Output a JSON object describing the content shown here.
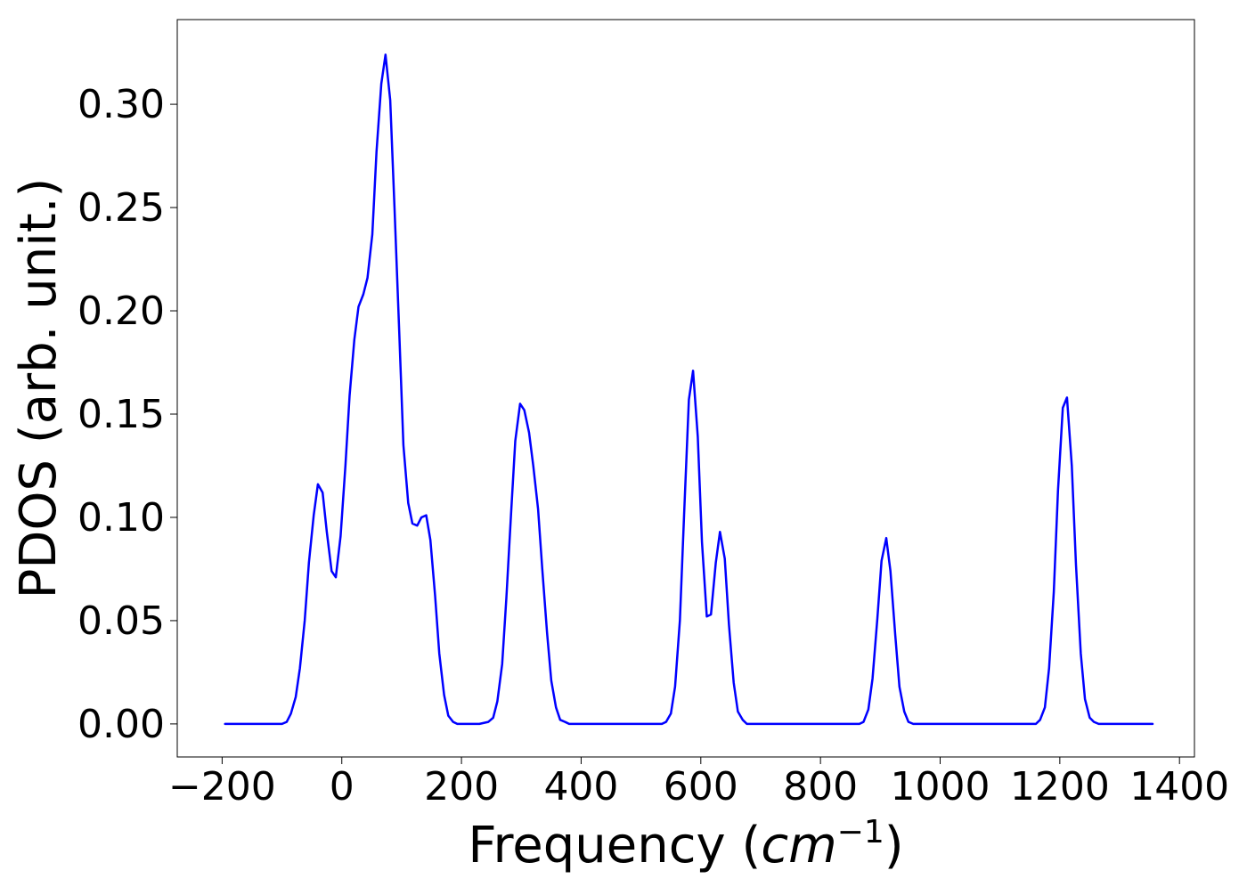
{
  "chart_data": {
    "type": "line",
    "xlabel": "Frequency (",
    "xlabel_math": "cm",
    "xlabel_sup": "−1",
    "xlabel_tail": ")",
    "ylabel": "PDOS (arb. unit.)",
    "xlim": [
      -275,
      1425
    ],
    "ylim": [
      -0.016,
      0.341
    ],
    "x_ticks": [
      -200,
      0,
      200,
      400,
      600,
      800,
      1000,
      1200,
      1400
    ],
    "x_tick_labels": [
      "−200",
      "0",
      "200",
      "400",
      "600",
      "800",
      "1000",
      "1200",
      "1400"
    ],
    "y_ticks": [
      0.0,
      0.05,
      0.1,
      0.15,
      0.2,
      0.25,
      0.3
    ],
    "y_tick_labels": [
      "0.00",
      "0.05",
      "0.10",
      "0.15",
      "0.20",
      "0.25",
      "0.30"
    ],
    "grid": false,
    "legend": "none",
    "series": [
      {
        "color": "#0000ff",
        "x": [
          -195,
          -100,
          -92,
          -85,
          -77,
          -70,
          -62,
          -55,
          -47,
          -40,
          -32,
          -25,
          -17,
          -10,
          -2,
          6,
          13,
          21,
          28,
          36,
          43,
          51,
          58,
          66,
          73,
          81,
          88,
          96,
          103,
          111,
          118,
          126,
          133,
          141,
          148,
          156,
          163,
          171,
          178,
          186,
          193,
          201,
          208,
          216,
          230,
          245,
          253,
          260,
          268,
          275,
          283,
          290,
          298,
          305,
          313,
          320,
          328,
          335,
          343,
          350,
          358,
          365,
          373,
          380,
          388,
          400,
          535,
          542,
          550,
          557,
          565,
          572,
          580,
          587,
          595,
          602,
          610,
          617,
          625,
          632,
          640,
          647,
          655,
          662,
          670,
          677,
          685,
          700,
          865,
          872,
          880,
          887,
          895,
          902,
          910,
          917,
          925,
          932,
          940,
          947,
          955,
          962,
          970,
          1160,
          1167,
          1175,
          1182,
          1190,
          1197,
          1205,
          1212,
          1220,
          1227,
          1235,
          1242,
          1250,
          1257,
          1265,
          1272,
          1355
        ],
        "y": [
          0.0,
          0.0,
          0.001,
          0.005,
          0.013,
          0.027,
          0.05,
          0.078,
          0.101,
          0.116,
          0.112,
          0.093,
          0.074,
          0.071,
          0.091,
          0.125,
          0.159,
          0.186,
          0.202,
          0.208,
          0.216,
          0.237,
          0.277,
          0.31,
          0.324,
          0.302,
          0.25,
          0.19,
          0.135,
          0.107,
          0.097,
          0.096,
          0.1,
          0.101,
          0.089,
          0.062,
          0.034,
          0.014,
          0.004,
          0.001,
          0.0,
          0.0,
          0.0,
          0.0,
          0.0,
          0.001,
          0.003,
          0.011,
          0.029,
          0.061,
          0.102,
          0.137,
          0.155,
          0.152,
          0.141,
          0.125,
          0.104,
          0.075,
          0.044,
          0.021,
          0.008,
          0.002,
          0.001,
          0.0,
          0.0,
          0.0,
          0.0,
          0.001,
          0.005,
          0.018,
          0.05,
          0.101,
          0.157,
          0.171,
          0.139,
          0.088,
          0.052,
          0.053,
          0.078,
          0.093,
          0.08,
          0.048,
          0.02,
          0.006,
          0.002,
          0.0,
          0.0,
          0.0,
          0.0,
          0.001,
          0.007,
          0.022,
          0.051,
          0.079,
          0.09,
          0.074,
          0.043,
          0.018,
          0.006,
          0.001,
          0.0,
          0.0,
          0.0,
          0.0,
          0.002,
          0.008,
          0.027,
          0.064,
          0.113,
          0.153,
          0.158,
          0.125,
          0.077,
          0.034,
          0.012,
          0.003,
          0.001,
          0.0,
          0.0,
          0.0
        ]
      }
    ]
  }
}
